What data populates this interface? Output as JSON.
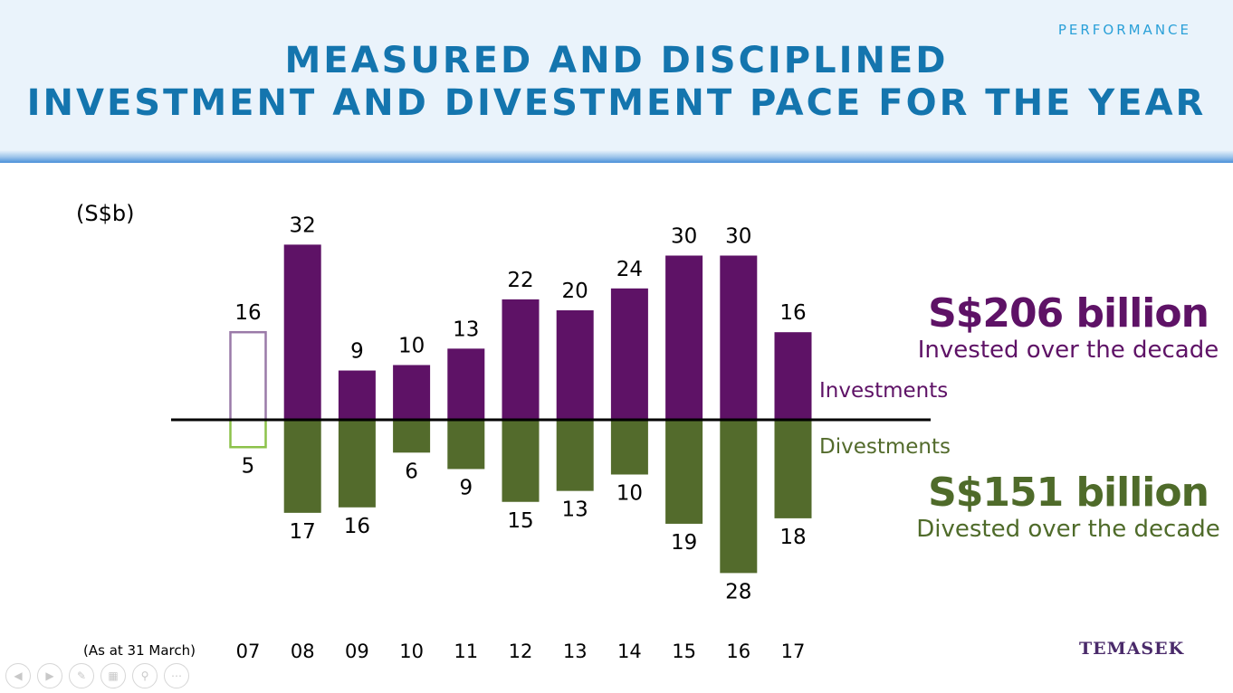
{
  "header": {
    "section": "PERFORMANCE",
    "title_line1": "MEASURED AND DISCIPLINED",
    "title_line2": "INVESTMENT AND DIVESTMENT PACE FOR THE YEAR"
  },
  "chart_data": {
    "type": "bar",
    "unit_label": "(S$b)",
    "categories": [
      "07",
      "08",
      "09",
      "10",
      "11",
      "12",
      "13",
      "14",
      "15",
      "16",
      "17"
    ],
    "x_note": "(As at 31 March)",
    "series": [
      {
        "name": "Investments",
        "values": [
          16,
          32,
          9,
          10,
          13,
          22,
          20,
          24,
          30,
          30,
          16
        ],
        "color": "#5e1266",
        "outline_first": true
      },
      {
        "name": "Divestments",
        "values": [
          5,
          17,
          16,
          6,
          9,
          15,
          13,
          10,
          19,
          28,
          18
        ],
        "color": "#536b2c",
        "outline_first": true
      }
    ],
    "outline_colors": {
      "Investments": "#9a7aa8",
      "Divestments": "#8cc24a"
    },
    "ylim": [
      -28,
      32
    ],
    "grid": false,
    "legend": "inline-right"
  },
  "summary": {
    "invested_amount": "S$206 billion",
    "invested_text": "Invested over the decade",
    "divested_amount": "S$151 billion",
    "divested_text": "Divested over the decade"
  },
  "footer": {
    "logo": "TEMASEK",
    "nav_icons": [
      "previous-icon",
      "next-icon",
      "pen-icon",
      "slides-icon",
      "zoom-icon",
      "more-icon"
    ]
  }
}
